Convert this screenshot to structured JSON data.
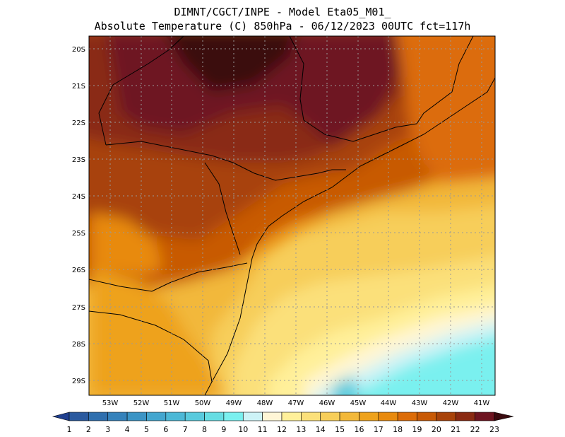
{
  "title": {
    "line1": "DIMNT/CGCT/INPE -  Model Eta05_M01_",
    "line2": "Absolute Temperature (C) 850hPa -  06/12/2023 00UTC fct=117h"
  },
  "axes": {
    "lat_labels": [
      "20S",
      "21S",
      "22S",
      "23S",
      "24S",
      "25S",
      "26S",
      "27S",
      "28S",
      "29S"
    ],
    "lon_labels": [
      "53W",
      "52W",
      "51W",
      "50W",
      "49W",
      "48W",
      "47W",
      "46W",
      "45W",
      "44W",
      "43W",
      "42W",
      "41W"
    ]
  },
  "colorbar": {
    "labels": [
      "1",
      "2",
      "3",
      "4",
      "5",
      "6",
      "7",
      "8",
      "9",
      "10",
      "11",
      "12",
      "13",
      "14",
      "15",
      "16",
      "17",
      "18",
      "19",
      "20",
      "21",
      "22",
      "23"
    ],
    "colors": [
      "#1f3f8f",
      "#2a5a9f",
      "#2f6fae",
      "#3582bb",
      "#3b94c5",
      "#43a6cf",
      "#4cb8d6",
      "#59cadd",
      "#66dde3",
      "#7af0ef",
      "#cdf3f7",
      "#fff6d6",
      "#fff09a",
      "#fbe07a",
      "#f7ce5a",
      "#f2b83a",
      "#eea21c",
      "#e88a0e",
      "#dc6c08",
      "#c85a06",
      "#a8430a",
      "#8a2a12",
      "#6e1420",
      "#3a0a0f"
    ]
  },
  "chart_data": {
    "type": "heatmap",
    "variable": "Absolute Temperature (C) 850hPa",
    "lat_range": [
      "29.5S",
      "20S"
    ],
    "lon_range": [
      "53.5W",
      "40.5W"
    ],
    "color_scale_min": 1,
    "color_scale_max": 23
  }
}
